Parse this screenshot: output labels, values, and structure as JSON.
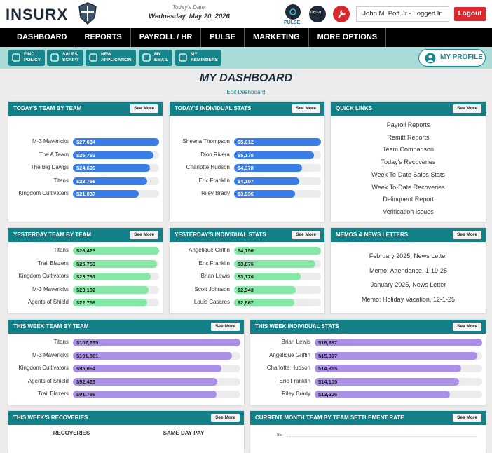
{
  "header": {
    "logo": "INSURX",
    "date_label": "Today's Date:",
    "date": "Wednesday, May 20, 2026",
    "pulse": "PULSE",
    "nexa": "nexa",
    "user": "John M. Poff Jr - Logged In",
    "logout": "Logout"
  },
  "nav": [
    "DASHBOARD",
    "REPORTS",
    "PAYROLL / HR",
    "PULSE",
    "MARKETING",
    "MORE OPTIONS"
  ],
  "toolbar": [
    [
      "FIND",
      "POLICY"
    ],
    [
      "SALES",
      "SCRIPT"
    ],
    [
      "NEW",
      "APPLICATION"
    ],
    [
      "MY",
      "EMAIL"
    ],
    [
      "MY",
      "REMINDERS"
    ]
  ],
  "profile": "MY PROFILE",
  "title": "MY DASHBOARD",
  "edit": "Edit Dashboard",
  "panels": [
    {
      "title": "TODAY'S TEAM BY TEAM",
      "see_more": "See More",
      "kind": "bars",
      "color": "#3b7de6",
      "text_color": "#ffffff",
      "rows": [
        {
          "name": "M-3 Mavericks",
          "value": 27634,
          "label": "$27,634"
        },
        {
          "name": "The A Team",
          "value": 25753,
          "label": "$25,753"
        },
        {
          "name": "The Big Dawgs",
          "value": 24699,
          "label": "$24,699"
        },
        {
          "name": "Titans",
          "value": 23756,
          "label": "$23,756"
        },
        {
          "name": "Kingdom Cultivators",
          "value": 21037,
          "label": "$21,037"
        }
      ]
    },
    {
      "title": "TODAY'S INDIVIDUAL STATS",
      "see_more": "See More",
      "kind": "bars",
      "color": "#3b7de6",
      "text_color": "#ffffff",
      "rows": [
        {
          "name": "Sheena Thompson",
          "value": 5612,
          "label": "$5,612"
        },
        {
          "name": "Dion Rivera",
          "value": 5175,
          "label": "$5,175"
        },
        {
          "name": "Charlotte Hudson",
          "value": 4378,
          "label": "$4,378"
        },
        {
          "name": "Eric Franklin",
          "value": 4197,
          "label": "$4,197"
        },
        {
          "name": "Riley Brady",
          "value": 3935,
          "label": "$3,935"
        }
      ]
    },
    {
      "title": "QUICK LINKS",
      "see_more": "See More",
      "kind": "links",
      "items": [
        "Payroll Reports",
        "Remitt Reports",
        "Team Comparison",
        "Today's Recoveries",
        "Week To-Date Sales Stats",
        "Week To-Date Recoveries",
        "Delinquent Report",
        "Verification Issues"
      ]
    },
    {
      "title": "YESTERDAY TEAM BY TEAM",
      "see_more": "See More",
      "kind": "bars",
      "color": "#86e8a6",
      "text_color": "#1a1a1a",
      "rows": [
        {
          "name": "Titans",
          "value": 26423,
          "label": "$26,423"
        },
        {
          "name": "Trail Blazers",
          "value": 25753,
          "label": "$25,753"
        },
        {
          "name": "Kingdom Cultivators",
          "value": 23761,
          "label": "$23,761"
        },
        {
          "name": "M-3 Mavericks",
          "value": 23102,
          "label": "$23,102"
        },
        {
          "name": "Agents of Shield",
          "value": 22756,
          "label": "$22,756"
        }
      ]
    },
    {
      "title": "YESTERDAY'S INDIVIDUAL STATS",
      "see_more": "See More",
      "kind": "bars",
      "color": "#86e8a6",
      "text_color": "#1a1a1a",
      "rows": [
        {
          "name": "Angelique Griffin",
          "value": 4156,
          "label": "$4,156"
        },
        {
          "name": "Eric Franklin",
          "value": 3876,
          "label": "$3,876"
        },
        {
          "name": "Brian Lewis",
          "value": 3176,
          "label": "$3,176"
        },
        {
          "name": "Scott Johnson",
          "value": 2943,
          "label": "$2,943"
        },
        {
          "name": "Louis Casares",
          "value": 2867,
          "label": "$2,867"
        }
      ]
    },
    {
      "title": "MEMOS & NEWS LETTERS",
      "see_more": "See More",
      "kind": "memos",
      "items": [
        "February 2025, News Letter",
        "Memo: Attendance, 1-19-25",
        "January 2025, News Letter",
        "Memo: Holiday Vacation, 12-1-25"
      ]
    },
    {
      "title": "THIS WEEK TEAM BY TEAM",
      "see_more": "See More",
      "kind": "bars",
      "color": "#ab90e8",
      "text_color": "#1a1a1a",
      "rows": [
        {
          "name": "Titans",
          "value": 107235,
          "label": "$107,235"
        },
        {
          "name": "M-3 Mavericks",
          "value": 101861,
          "label": "$101,861"
        },
        {
          "name": "Kingdom Cultivators",
          "value": 95064,
          "label": "$95,064"
        },
        {
          "name": "Agents of Shield",
          "value": 92423,
          "label": "$92,423"
        },
        {
          "name": "Trail Blazers",
          "value": 91786,
          "label": "$91,786"
        }
      ]
    },
    {
      "title": "THIS WEEK INDIVIDUAL STATS",
      "see_more": "See More",
      "kind": "bars",
      "color": "#ab90e8",
      "text_color": "#1a1a1a",
      "rows": [
        {
          "name": "Brian Lewis",
          "value": 16387,
          "label": "$16,387"
        },
        {
          "name": "Angelique Griffin",
          "value": 15897,
          "label": "$15,897"
        },
        {
          "name": "Charlotte Hudson",
          "value": 14315,
          "label": "$14,315"
        },
        {
          "name": "Eric Franklin",
          "value": 14105,
          "label": "$14,105"
        },
        {
          "name": "Riley Brady",
          "value": 13206,
          "label": "$13,206"
        }
      ]
    },
    {
      "title": "THIS WEEK'S RECOVERIES",
      "see_more": "See More",
      "kind": "table",
      "columns": [
        "RECOVERIES",
        "SAME DAY PAY"
      ]
    },
    {
      "title": "CURRENT MONTH TEAM BY TEAM SETTLEMENT RATE",
      "see_more": "See More",
      "kind": "chart",
      "tick": 85
    }
  ]
}
